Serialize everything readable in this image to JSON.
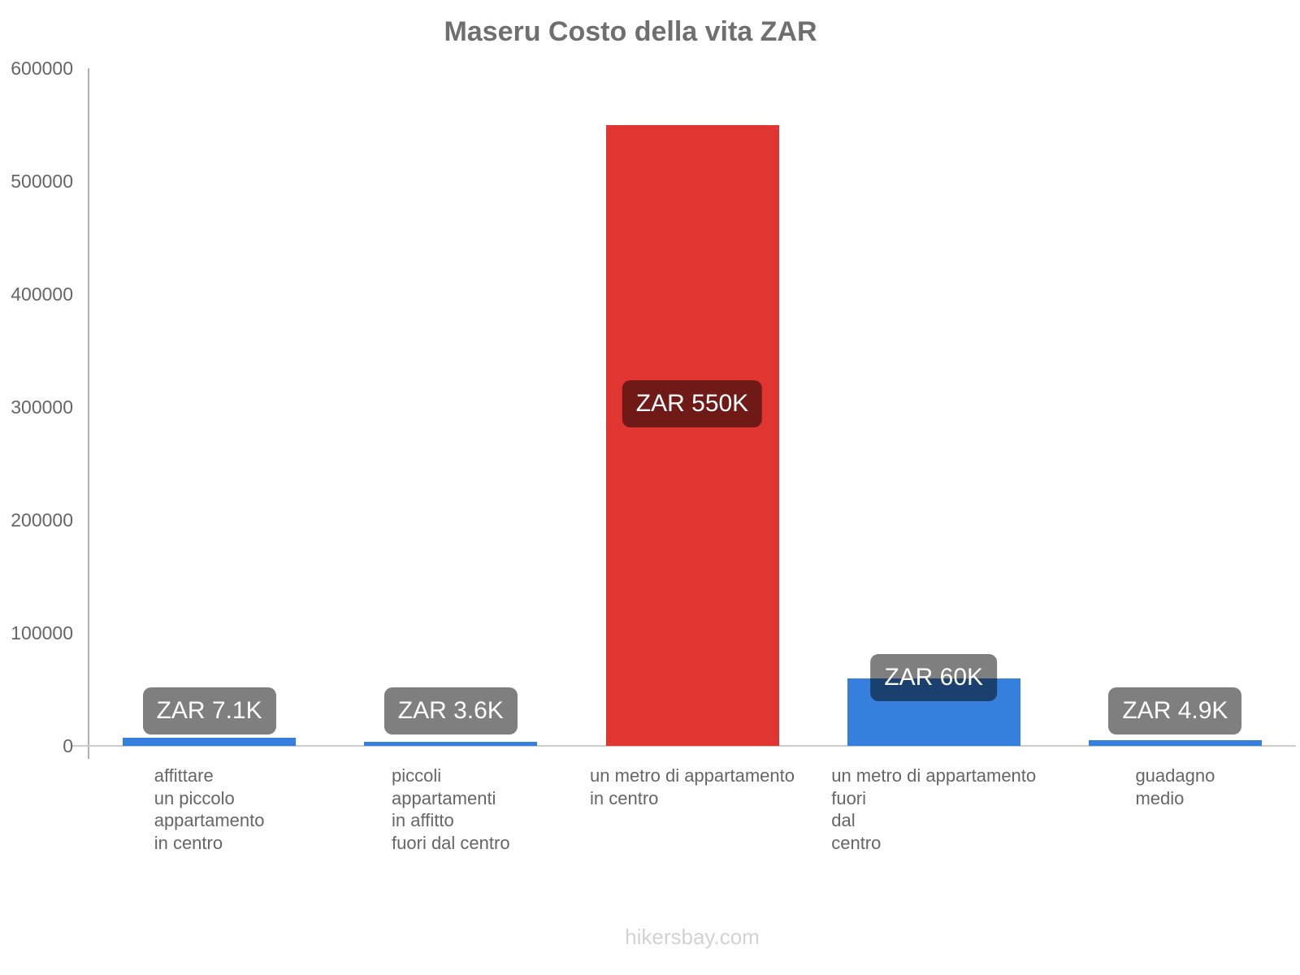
{
  "title": "Maseru Costo della vita ZAR",
  "footer": "hikersbay.com",
  "colors": {
    "bar_blue": "#3580dd",
    "bar_red": "#e03531",
    "value_label_bg": "rgba(0,0,0,0.5)",
    "value_label_text": "#ffffff",
    "title_text": "#6f6f6f",
    "axis_text": "#666666",
    "y_axis_line": "#b0b0b0",
    "x_axis_line": "#cccccc",
    "footer_text": "#d2d2d2"
  },
  "chart_data": {
    "type": "bar",
    "title": "Maseru Costo della vita ZAR",
    "categories": [
      [
        "affittare",
        "un piccolo",
        "appartamento",
        "in centro"
      ],
      [
        "piccoli",
        "appartamenti",
        "in affitto",
        "fuori dal centro"
      ],
      [
        "un metro di appartamento",
        "in centro"
      ],
      [
        "un metro di appartamento",
        "fuori",
        "dal",
        "centro"
      ],
      [
        "guadagno",
        "medio"
      ]
    ],
    "values": [
      7100,
      3600,
      550000,
      60000,
      4900
    ],
    "value_labels": [
      "ZAR 7.1K",
      "ZAR 3.6K",
      "ZAR 550K",
      "ZAR 60K",
      "ZAR 4.9K"
    ],
    "bar_colors": [
      "#3580dd",
      "#3580dd",
      "#e03531",
      "#3580dd",
      "#3580dd"
    ],
    "xlabel": "",
    "ylabel": "",
    "ylim": [
      0,
      600000
    ],
    "yticks": [
      {
        "value": 0,
        "label": "0"
      },
      {
        "value": 100000,
        "label": "100000"
      },
      {
        "value": 200000,
        "label": "200000"
      },
      {
        "value": 300000,
        "label": "300000"
      },
      {
        "value": 400000,
        "label": "400000"
      },
      {
        "value": 500000,
        "label": "500000"
      },
      {
        "value": 600000,
        "label": "600000"
      }
    ],
    "grid": false,
    "legend": false
  }
}
